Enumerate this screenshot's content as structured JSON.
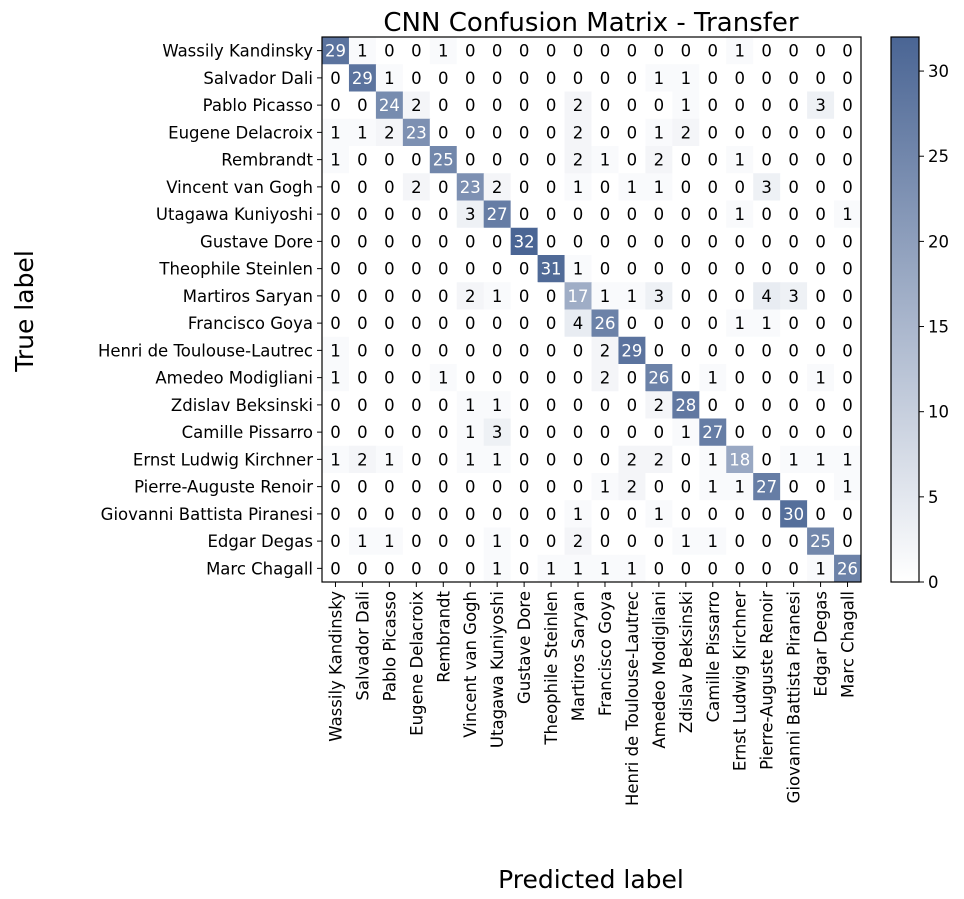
{
  "chart_data": {
    "type": "heatmap",
    "title": "CNN Confusion Matrix - Transfer",
    "xlabel": "Predicted label",
    "ylabel": "True label",
    "categories": [
      "Wassily Kandinsky",
      "Salvador Dali",
      "Pablo Picasso",
      "Eugene Delacroix",
      "Rembrandt",
      "Vincent van Gogh",
      "Utagawa Kuniyoshi",
      "Gustave Dore",
      "Theophile Steinlen",
      "Martiros Saryan",
      "Francisco Goya",
      "Henri de Toulouse-Lautrec",
      "Amedeo Modigliani",
      "Zdislav Beksinski",
      "Camille Pissarro",
      "Ernst Ludwig Kirchner",
      "Pierre-Auguste Renoir",
      "Giovanni Battista Piranesi",
      "Edgar Degas",
      "Marc Chagall"
    ],
    "matrix": [
      [
        29,
        1,
        0,
        0,
        1,
        0,
        0,
        0,
        0,
        0,
        0,
        0,
        0,
        0,
        0,
        1,
        0,
        0,
        0,
        0
      ],
      [
        0,
        29,
        1,
        0,
        0,
        0,
        0,
        0,
        0,
        0,
        0,
        0,
        1,
        1,
        0,
        0,
        0,
        0,
        0,
        0
      ],
      [
        0,
        0,
        24,
        2,
        0,
        0,
        0,
        0,
        0,
        2,
        0,
        0,
        0,
        1,
        0,
        0,
        0,
        0,
        3,
        0
      ],
      [
        1,
        1,
        2,
        23,
        0,
        0,
        0,
        0,
        0,
        2,
        0,
        0,
        1,
        2,
        0,
        0,
        0,
        0,
        0,
        0
      ],
      [
        1,
        0,
        0,
        0,
        25,
        0,
        0,
        0,
        0,
        2,
        1,
        0,
        2,
        0,
        0,
        1,
        0,
        0,
        0,
        0
      ],
      [
        0,
        0,
        0,
        2,
        0,
        23,
        2,
        0,
        0,
        1,
        0,
        1,
        1,
        0,
        0,
        0,
        3,
        0,
        0,
        0
      ],
      [
        0,
        0,
        0,
        0,
        0,
        3,
        27,
        0,
        0,
        0,
        0,
        0,
        0,
        0,
        0,
        1,
        0,
        0,
        0,
        1
      ],
      [
        0,
        0,
        0,
        0,
        0,
        0,
        0,
        32,
        0,
        0,
        0,
        0,
        0,
        0,
        0,
        0,
        0,
        0,
        0,
        0
      ],
      [
        0,
        0,
        0,
        0,
        0,
        0,
        0,
        0,
        31,
        1,
        0,
        0,
        0,
        0,
        0,
        0,
        0,
        0,
        0,
        0
      ],
      [
        0,
        0,
        0,
        0,
        0,
        2,
        1,
        0,
        0,
        17,
        1,
        1,
        3,
        0,
        0,
        0,
        4,
        3,
        0,
        0
      ],
      [
        0,
        0,
        0,
        0,
        0,
        0,
        0,
        0,
        0,
        4,
        26,
        0,
        0,
        0,
        0,
        1,
        1,
        0,
        0,
        0
      ],
      [
        1,
        0,
        0,
        0,
        0,
        0,
        0,
        0,
        0,
        0,
        2,
        29,
        0,
        0,
        0,
        0,
        0,
        0,
        0,
        0
      ],
      [
        1,
        0,
        0,
        0,
        1,
        0,
        0,
        0,
        0,
        0,
        2,
        0,
        26,
        0,
        1,
        0,
        0,
        0,
        1,
        0
      ],
      [
        0,
        0,
        0,
        0,
        0,
        1,
        1,
        0,
        0,
        0,
        0,
        0,
        2,
        28,
        0,
        0,
        0,
        0,
        0,
        0
      ],
      [
        0,
        0,
        0,
        0,
        0,
        1,
        3,
        0,
        0,
        0,
        0,
        0,
        0,
        1,
        27,
        0,
        0,
        0,
        0,
        0
      ],
      [
        1,
        2,
        1,
        0,
        0,
        1,
        1,
        0,
        0,
        0,
        0,
        2,
        2,
        0,
        1,
        18,
        0,
        1,
        1,
        1
      ],
      [
        0,
        0,
        0,
        0,
        0,
        0,
        0,
        0,
        0,
        0,
        1,
        2,
        0,
        0,
        1,
        1,
        27,
        0,
        0,
        1
      ],
      [
        0,
        0,
        0,
        0,
        0,
        0,
        0,
        0,
        0,
        1,
        0,
        0,
        1,
        0,
        0,
        0,
        0,
        30,
        0,
        0
      ],
      [
        0,
        1,
        1,
        0,
        0,
        0,
        1,
        0,
        0,
        2,
        0,
        0,
        0,
        1,
        1,
        0,
        0,
        0,
        25,
        0
      ],
      [
        0,
        0,
        0,
        0,
        0,
        0,
        1,
        0,
        1,
        1,
        1,
        1,
        0,
        0,
        0,
        0,
        0,
        0,
        1,
        26
      ]
    ],
    "colorbar": {
      "min": 0,
      "max": 32,
      "ticks": [
        0,
        5,
        10,
        15,
        20,
        25,
        30
      ]
    },
    "colors": {
      "low": "#ffffff",
      "high": "#4a6594"
    },
    "grid": false
  }
}
